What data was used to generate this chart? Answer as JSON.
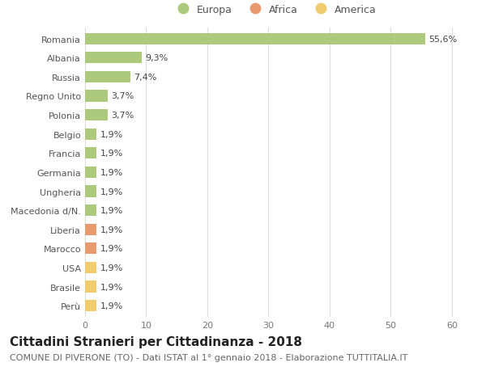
{
  "categories": [
    "Romania",
    "Albania",
    "Russia",
    "Regno Unito",
    "Polonia",
    "Belgio",
    "Francia",
    "Germania",
    "Ungheria",
    "Macedonia d/N.",
    "Liberia",
    "Marocco",
    "USA",
    "Brasile",
    "Perù"
  ],
  "values": [
    55.6,
    9.3,
    7.4,
    3.7,
    3.7,
    1.9,
    1.9,
    1.9,
    1.9,
    1.9,
    1.9,
    1.9,
    1.9,
    1.9,
    1.9
  ],
  "labels": [
    "55,6%",
    "9,3%",
    "7,4%",
    "3,7%",
    "3,7%",
    "1,9%",
    "1,9%",
    "1,9%",
    "1,9%",
    "1,9%",
    "1,9%",
    "1,9%",
    "1,9%",
    "1,9%",
    "1,9%"
  ],
  "colors": [
    "#adc97c",
    "#adc97c",
    "#adc97c",
    "#adc97c",
    "#adc97c",
    "#adc97c",
    "#adc97c",
    "#adc97c",
    "#adc97c",
    "#adc97c",
    "#e89a6e",
    "#e89a6e",
    "#f0cc6e",
    "#f0cc6e",
    "#f0cc6e"
  ],
  "legend": [
    {
      "label": "Europa",
      "color": "#adc97c"
    },
    {
      "label": "Africa",
      "color": "#e89a6e"
    },
    {
      "label": "America",
      "color": "#f0cc6e"
    }
  ],
  "xlim": [
    0,
    62
  ],
  "xticks": [
    0,
    10,
    20,
    30,
    40,
    50,
    60
  ],
  "title": "Cittadini Stranieri per Cittadinanza - 2018",
  "subtitle": "COMUNE DI PIVERONE (TO) - Dati ISTAT al 1° gennaio 2018 - Elaborazione TUTTITALIA.IT",
  "background_color": "#ffffff",
  "grid_color": "#dddddd",
  "bar_height": 0.6,
  "title_fontsize": 11,
  "subtitle_fontsize": 8,
  "label_fontsize": 8,
  "tick_fontsize": 8,
  "legend_fontsize": 9
}
